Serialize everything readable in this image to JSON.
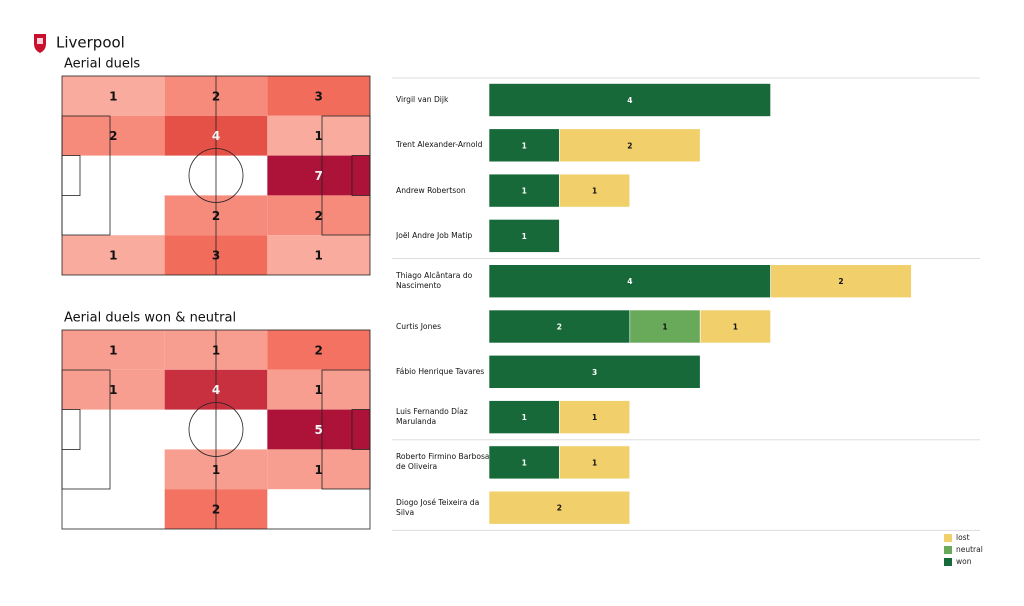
{
  "header": {
    "team": "Liverpool"
  },
  "chart_data": [
    {
      "type": "pitch-heatmap",
      "title": "Aerial duels",
      "colorscale": [
        "#fdcabe",
        "#f05c4a",
        "#ad1238"
      ],
      "cells": [
        [
          1,
          2,
          3
        ],
        [
          2,
          4,
          1
        ],
        [
          null,
          null,
          7
        ],
        [
          null,
          2,
          2
        ],
        [
          1,
          3,
          1
        ]
      ]
    },
    {
      "type": "pitch-heatmap",
      "title": "Aerial duels won & neutral",
      "colorscale": [
        "#fdcabe",
        "#f05c4a",
        "#ad1238"
      ],
      "cells": [
        [
          1,
          1,
          2
        ],
        [
          1,
          4,
          1
        ],
        [
          null,
          null,
          5
        ],
        [
          null,
          1,
          1
        ],
        [
          null,
          2,
          null
        ]
      ]
    },
    {
      "type": "stacked-barh",
      "categories": [
        "Virgil van Dijk",
        "Trent Alexander-Arnold",
        "Andrew Robertson",
        "Joël Andre Job Matip",
        "Thiago Alcântara do Nascimento",
        "Curtis Jones",
        "Fábio Henrique Tavares",
        "Luis Fernando Díaz Marulanda",
        "Roberto Firmino Barbosa de Oliveira",
        "Diogo José Teixeira da Silva"
      ],
      "series": [
        {
          "name": "won",
          "color": "#17693a",
          "values": [
            4,
            1,
            1,
            1,
            4,
            2,
            3,
            1,
            1,
            null
          ]
        },
        {
          "name": "neutral",
          "color": "#68a95a",
          "values": [
            null,
            null,
            null,
            null,
            null,
            1,
            null,
            null,
            null,
            null
          ]
        },
        {
          "name": "lost",
          "color": "#f1d06c",
          "values": [
            null,
            2,
            1,
            null,
            2,
            1,
            null,
            1,
            1,
            2
          ]
        }
      ],
      "legend": "lower right"
    }
  ]
}
